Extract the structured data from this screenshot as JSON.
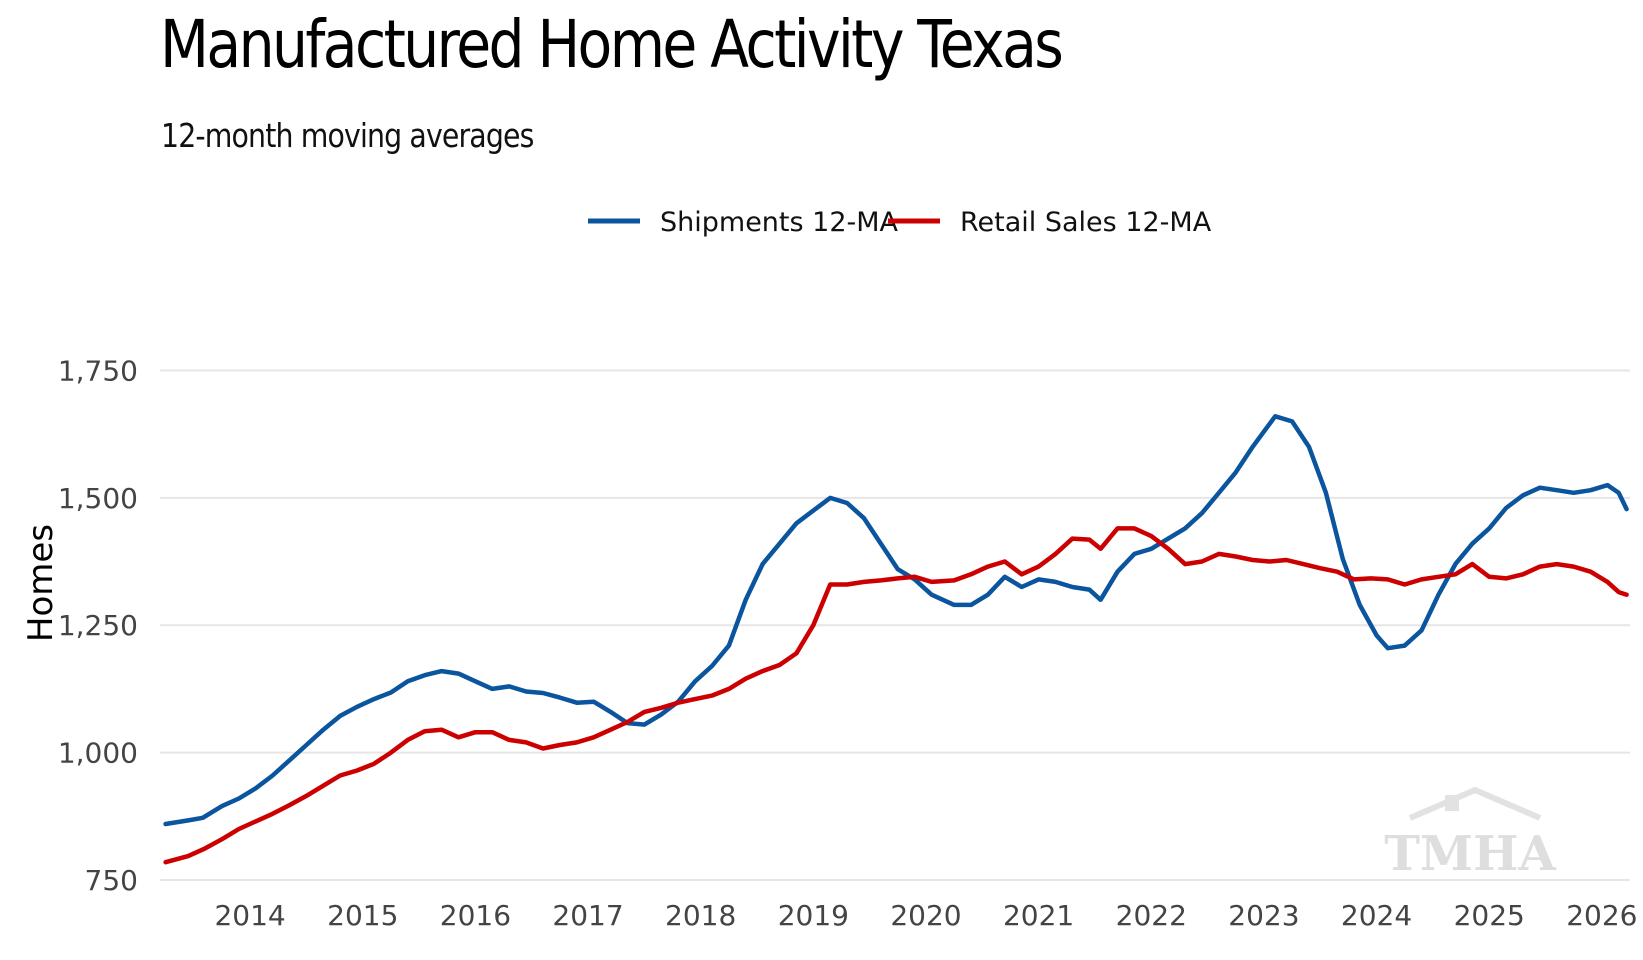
{
  "chart_data": {
    "type": "line",
    "title": "Manufactured Home Activity Texas",
    "subtitle": "12-month moving averages",
    "ylabel": "Homes",
    "xlabel": "",
    "ylim": [
      750,
      1800
    ],
    "yticks": [
      750,
      1000,
      1250,
      1500,
      1750
    ],
    "ytick_labels": [
      "750",
      "1,000",
      "1,250",
      "1,500",
      "1,750"
    ],
    "xlim": [
      2013.2,
      2026.25
    ],
    "xticks": [
      2014,
      2015,
      2016,
      2017,
      2018,
      2019,
      2020,
      2021,
      2022,
      2023,
      2024,
      2025,
      2026
    ],
    "xtick_labels": [
      "2014",
      "2015",
      "2016",
      "2017",
      "2018",
      "2019",
      "2020",
      "2021",
      "2022",
      "2023",
      "2024",
      "2025",
      "2026"
    ],
    "grid": true,
    "legend_position": "top",
    "watermark": "TMHA",
    "series": [
      {
        "name": "Shipments 12-MA",
        "color": "#0b559f",
        "x": [
          2013.25,
          2013.45,
          2013.58,
          2013.75,
          2013.9,
          2014.05,
          2014.2,
          2014.35,
          2014.5,
          2014.65,
          2014.8,
          2014.95,
          2015.1,
          2015.25,
          2015.4,
          2015.55,
          2015.7,
          2015.85,
          2016.0,
          2016.15,
          2016.3,
          2016.45,
          2016.6,
          2016.75,
          2016.9,
          2017.05,
          2017.2,
          2017.35,
          2017.5,
          2017.65,
          2017.8,
          2017.95,
          2018.1,
          2018.25,
          2018.4,
          2018.55,
          2018.7,
          2018.85,
          2019.0,
          2019.15,
          2019.3,
          2019.45,
          2019.6,
          2019.75,
          2019.9,
          2020.05,
          2020.25,
          2020.4,
          2020.55,
          2020.7,
          2020.85,
          2021.0,
          2021.15,
          2021.3,
          2021.45,
          2021.55,
          2021.7,
          2021.85,
          2022.0,
          2022.15,
          2022.3,
          2022.45,
          2022.6,
          2022.75,
          2022.9,
          2023.0,
          2023.1,
          2023.25,
          2023.4,
          2023.55,
          2023.7,
          2023.85,
          2024.0,
          2024.1,
          2024.25,
          2024.4,
          2024.55,
          2024.7,
          2024.85,
          2025.0,
          2025.15,
          2025.3,
          2025.45,
          2025.6,
          2025.75,
          2025.9,
          2026.05,
          2026.15,
          2026.22
        ],
        "y": [
          860,
          867,
          872,
          895,
          910,
          930,
          955,
          985,
          1015,
          1045,
          1072,
          1090,
          1105,
          1118,
          1140,
          1152,
          1160,
          1155,
          1140,
          1125,
          1130,
          1120,
          1117,
          1108,
          1098,
          1100,
          1080,
          1058,
          1055,
          1075,
          1100,
          1140,
          1170,
          1210,
          1300,
          1370,
          1410,
          1450,
          1475,
          1500,
          1490,
          1460,
          1410,
          1360,
          1340,
          1310,
          1290,
          1290,
          1310,
          1345,
          1325,
          1340,
          1335,
          1325,
          1320,
          1300,
          1355,
          1390,
          1400,
          1420,
          1440,
          1470,
          1510,
          1550,
          1600,
          1630,
          1660,
          1650,
          1600,
          1510,
          1380,
          1290,
          1230,
          1205,
          1210,
          1240,
          1310,
          1370,
          1410,
          1440,
          1480,
          1505,
          1520,
          1515,
          1510,
          1515,
          1525,
          1510,
          1478
        ]
      },
      {
        "name": "Retail Sales 12-MA",
        "color": "#cc0000",
        "x": [
          2013.25,
          2013.45,
          2013.6,
          2013.75,
          2013.9,
          2014.05,
          2014.2,
          2014.35,
          2014.5,
          2014.65,
          2014.8,
          2014.95,
          2015.1,
          2015.25,
          2015.4,
          2015.55,
          2015.7,
          2015.85,
          2016.0,
          2016.15,
          2016.3,
          2016.45,
          2016.6,
          2016.75,
          2016.9,
          2017.05,
          2017.2,
          2017.35,
          2017.5,
          2017.65,
          2017.8,
          2017.95,
          2018.1,
          2018.25,
          2018.4,
          2018.55,
          2018.7,
          2018.85,
          2019.0,
          2019.15,
          2019.3,
          2019.45,
          2019.6,
          2019.75,
          2019.9,
          2020.05,
          2020.25,
          2020.4,
          2020.55,
          2020.7,
          2020.85,
          2021.0,
          2021.15,
          2021.3,
          2021.45,
          2021.55,
          2021.7,
          2021.85,
          2022.0,
          2022.15,
          2022.3,
          2022.45,
          2022.6,
          2022.75,
          2022.9,
          2023.05,
          2023.2,
          2023.35,
          2023.5,
          2023.65,
          2023.8,
          2023.95,
          2024.1,
          2024.25,
          2024.4,
          2024.55,
          2024.7,
          2024.85,
          2025.0,
          2025.15,
          2025.3,
          2025.45,
          2025.6,
          2025.75,
          2025.9,
          2026.05,
          2026.15,
          2026.22
        ],
        "y": [
          785,
          797,
          812,
          830,
          850,
          865,
          880,
          897,
          915,
          935,
          955,
          965,
          978,
          1000,
          1025,
          1042,
          1045,
          1030,
          1040,
          1040,
          1025,
          1020,
          1008,
          1015,
          1020,
          1030,
          1045,
          1060,
          1080,
          1088,
          1098,
          1105,
          1112,
          1125,
          1145,
          1160,
          1172,
          1195,
          1250,
          1330,
          1330,
          1335,
          1338,
          1342,
          1345,
          1335,
          1338,
          1350,
          1365,
          1375,
          1350,
          1365,
          1390,
          1420,
          1418,
          1400,
          1440,
          1440,
          1425,
          1400,
          1370,
          1375,
          1390,
          1385,
          1378,
          1375,
          1378,
          1370,
          1362,
          1355,
          1340,
          1342,
          1340,
          1330,
          1340,
          1345,
          1350,
          1370,
          1345,
          1342,
          1350,
          1365,
          1370,
          1365,
          1355,
          1335,
          1315,
          1310
        ]
      }
    ]
  }
}
